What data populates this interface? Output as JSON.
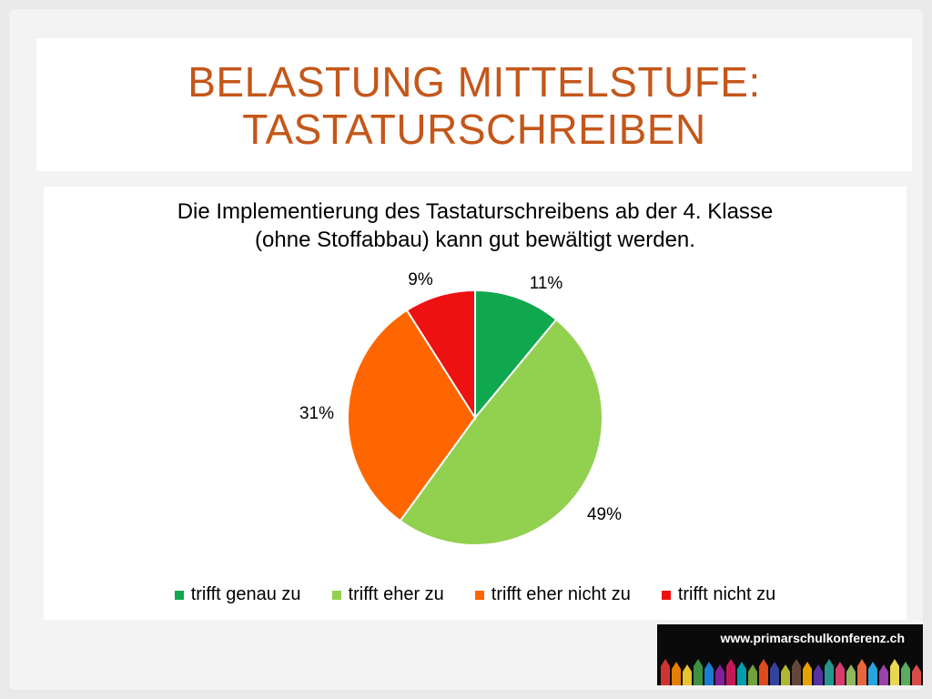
{
  "slide": {
    "title_line1": "BELASTUNG MITTELSTUFE:",
    "title_line2": "TASTATURSCHREIBEN",
    "footer_url": "www.primarschulkonferenz.ch"
  },
  "chart_data": {
    "type": "pie",
    "title_line1": "Die Implementierung des Tastaturschreibens ab der 4. Klasse",
    "title_line2": "(ohne Stoffabbau) kann gut bewältigt werden.",
    "categories": [
      "trifft genau zu",
      "trifft eher zu",
      "trifft eher nicht zu",
      "trifft nicht zu"
    ],
    "values": [
      11,
      49,
      31,
      9
    ],
    "labels": [
      "11%",
      "49%",
      "31%",
      "9%"
    ],
    "colors": [
      "#0fa84e",
      "#92d050",
      "#ff6600",
      "#ee1111"
    ],
    "legend_position": "bottom"
  }
}
